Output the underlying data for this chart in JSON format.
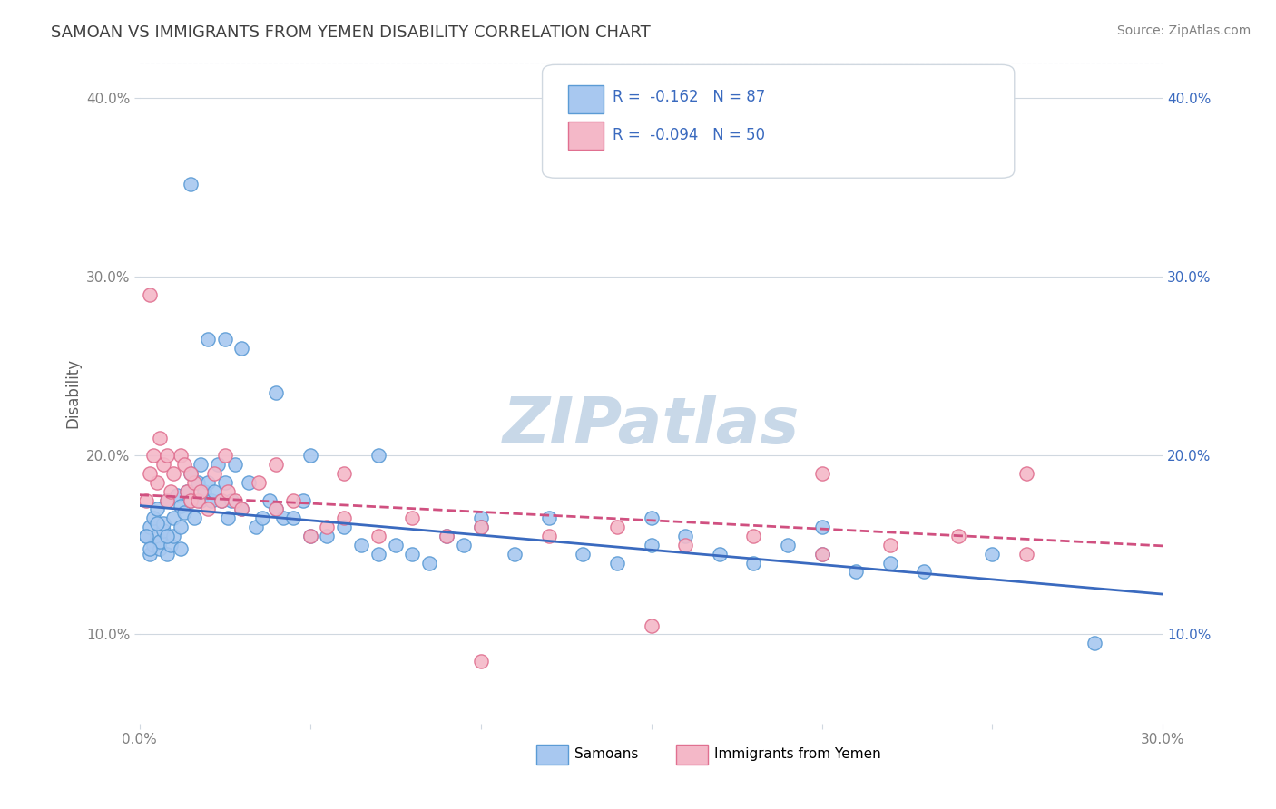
{
  "title": "SAMOAN VS IMMIGRANTS FROM YEMEN DISABILITY CORRELATION CHART",
  "source": "Source: ZipAtlas.com",
  "ylabel": "Disability",
  "xlabel": "",
  "xlim": [
    0.0,
    0.3
  ],
  "ylim": [
    0.05,
    0.42
  ],
  "x_tick_labels": [
    "0.0%",
    "30.0%"
  ],
  "y_tick_labels": [
    "10.0%",
    "20.0%",
    "30.0%",
    "40.0%"
  ],
  "y_tick_values": [
    0.1,
    0.2,
    0.3,
    0.4
  ],
  "samoans_color": "#a8c8f0",
  "samoans_edge_color": "#5b9bd5",
  "yemen_color": "#f4b8c8",
  "yemen_edge_color": "#e07090",
  "samoans_line_color": "#3a6abf",
  "yemen_line_color": "#d05080",
  "legend_r1": "R =  -0.162   N = 87",
  "legend_r2": "R =  -0.094   N = 50",
  "watermark": "ZIPatlas",
  "watermark_color": "#c8d8e8",
  "grid_color": "#d0d8e0",
  "samoans_scatter": {
    "x": [
      0.002,
      0.003,
      0.003,
      0.004,
      0.004,
      0.005,
      0.005,
      0.006,
      0.006,
      0.007,
      0.007,
      0.008,
      0.008,
      0.009,
      0.01,
      0.01,
      0.011,
      0.012,
      0.012,
      0.013,
      0.014,
      0.015,
      0.015,
      0.016,
      0.017,
      0.018,
      0.018,
      0.019,
      0.02,
      0.021,
      0.022,
      0.023,
      0.024,
      0.025,
      0.026,
      0.027,
      0.028,
      0.03,
      0.032,
      0.034,
      0.036,
      0.038,
      0.04,
      0.042,
      0.045,
      0.048,
      0.05,
      0.055,
      0.06,
      0.065,
      0.07,
      0.075,
      0.08,
      0.085,
      0.09,
      0.095,
      0.1,
      0.11,
      0.12,
      0.13,
      0.14,
      0.15,
      0.16,
      0.17,
      0.18,
      0.19,
      0.2,
      0.21,
      0.22,
      0.23,
      0.002,
      0.003,
      0.005,
      0.008,
      0.012,
      0.015,
      0.02,
      0.025,
      0.03,
      0.04,
      0.05,
      0.07,
      0.1,
      0.15,
      0.2,
      0.25,
      0.28
    ],
    "y": [
      0.155,
      0.16,
      0.145,
      0.15,
      0.165,
      0.155,
      0.17,
      0.148,
      0.152,
      0.158,
      0.162,
      0.145,
      0.175,
      0.15,
      0.165,
      0.155,
      0.178,
      0.16,
      0.172,
      0.168,
      0.18,
      0.175,
      0.19,
      0.165,
      0.185,
      0.175,
      0.195,
      0.18,
      0.185,
      0.175,
      0.18,
      0.195,
      0.175,
      0.185,
      0.165,
      0.175,
      0.195,
      0.17,
      0.185,
      0.16,
      0.165,
      0.175,
      0.17,
      0.165,
      0.165,
      0.175,
      0.155,
      0.155,
      0.16,
      0.15,
      0.145,
      0.15,
      0.145,
      0.14,
      0.155,
      0.15,
      0.165,
      0.145,
      0.165,
      0.145,
      0.14,
      0.15,
      0.155,
      0.145,
      0.14,
      0.15,
      0.145,
      0.135,
      0.14,
      0.135,
      0.155,
      0.148,
      0.162,
      0.155,
      0.148,
      0.352,
      0.265,
      0.265,
      0.26,
      0.235,
      0.2,
      0.2,
      0.16,
      0.165,
      0.16,
      0.145,
      0.095
    ]
  },
  "yemen_scatter": {
    "x": [
      0.002,
      0.003,
      0.004,
      0.005,
      0.006,
      0.007,
      0.008,
      0.009,
      0.01,
      0.012,
      0.013,
      0.014,
      0.015,
      0.016,
      0.017,
      0.018,
      0.02,
      0.022,
      0.024,
      0.026,
      0.028,
      0.03,
      0.035,
      0.04,
      0.045,
      0.05,
      0.055,
      0.06,
      0.07,
      0.08,
      0.09,
      0.1,
      0.12,
      0.14,
      0.16,
      0.18,
      0.2,
      0.22,
      0.24,
      0.26,
      0.003,
      0.008,
      0.015,
      0.025,
      0.04,
      0.06,
      0.1,
      0.15,
      0.2,
      0.26
    ],
    "y": [
      0.175,
      0.29,
      0.2,
      0.185,
      0.21,
      0.195,
      0.175,
      0.18,
      0.19,
      0.2,
      0.195,
      0.18,
      0.175,
      0.185,
      0.175,
      0.18,
      0.17,
      0.19,
      0.175,
      0.18,
      0.175,
      0.17,
      0.185,
      0.17,
      0.175,
      0.155,
      0.16,
      0.165,
      0.155,
      0.165,
      0.155,
      0.16,
      0.155,
      0.16,
      0.15,
      0.155,
      0.145,
      0.15,
      0.155,
      0.145,
      0.19,
      0.2,
      0.19,
      0.2,
      0.195,
      0.19,
      0.085,
      0.105,
      0.19,
      0.19
    ]
  },
  "samoans_reg": {
    "intercept": 0.172,
    "slope": -0.165
  },
  "yemen_reg": {
    "intercept": 0.178,
    "slope": -0.095
  },
  "background_color": "#ffffff",
  "title_color": "#404040",
  "source_color": "#808080",
  "axis_label_color": "#606060",
  "tick_color": "#808080"
}
